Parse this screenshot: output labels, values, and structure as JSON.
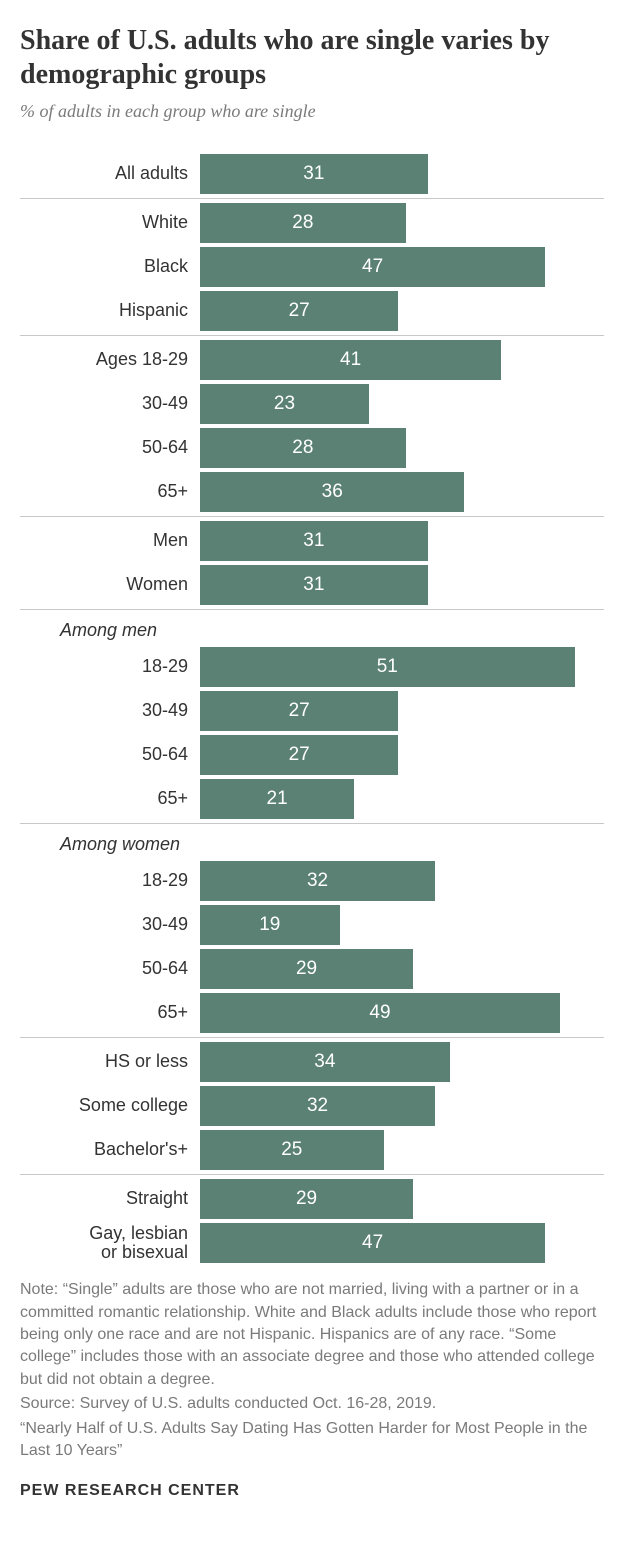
{
  "title": "Share of U.S. adults who are single varies by demographic groups",
  "subtitle": "% of adults in each group who are single",
  "chart": {
    "type": "bar",
    "bar_color": "#5a8174",
    "value_text_color": "#ffffff",
    "label_fontsize": 18,
    "value_fontsize": 19,
    "xmax": 55,
    "divider_color": "#c8c8c8",
    "background_color": "#ffffff",
    "groups": [
      {
        "rows": [
          {
            "label": "All adults",
            "value": 31
          }
        ]
      },
      {
        "rows": [
          {
            "label": "White",
            "value": 28
          },
          {
            "label": "Black",
            "value": 47
          },
          {
            "label": "Hispanic",
            "value": 27
          }
        ]
      },
      {
        "rows": [
          {
            "label": "Ages 18-29",
            "value": 41
          },
          {
            "label": "30-49",
            "value": 23
          },
          {
            "label": "50-64",
            "value": 28
          },
          {
            "label": "65+",
            "value": 36
          }
        ]
      },
      {
        "rows": [
          {
            "label": "Men",
            "value": 31
          },
          {
            "label": "Women",
            "value": 31
          }
        ]
      },
      {
        "subhead": "Among men",
        "rows": [
          {
            "label": "18-29",
            "value": 51
          },
          {
            "label": "30-49",
            "value": 27
          },
          {
            "label": "50-64",
            "value": 27
          },
          {
            "label": "65+",
            "value": 21
          }
        ]
      },
      {
        "subhead": "Among women",
        "rows": [
          {
            "label": "18-29",
            "value": 32
          },
          {
            "label": "30-49",
            "value": 19
          },
          {
            "label": "50-64",
            "value": 29
          },
          {
            "label": "65+",
            "value": 49
          }
        ]
      },
      {
        "rows": [
          {
            "label": "HS or less",
            "value": 34
          },
          {
            "label": "Some college",
            "value": 32
          },
          {
            "label": "Bachelor's+",
            "value": 25
          }
        ]
      },
      {
        "rows": [
          {
            "label": "Straight",
            "value": 29
          },
          {
            "label": "Gay, lesbian\nor bisexual",
            "value": 47,
            "multiline": true
          }
        ]
      }
    ]
  },
  "note": "Note: “Single” adults are those who are not married, living with a partner or in a committed romantic relationship. White and Black adults include those who report being only one race and are not Hispanic. Hispanics are of any race. “Some college” includes those with an associate degree and those who attended college but did not obtain a degree.",
  "source": "Source: Survey of U.S. adults conducted Oct. 16-28, 2019.",
  "report": "“Nearly Half of U.S. Adults Say Dating Has Gotten Harder for Most People in the Last 10 Years”",
  "footer": "PEW RESEARCH CENTER"
}
